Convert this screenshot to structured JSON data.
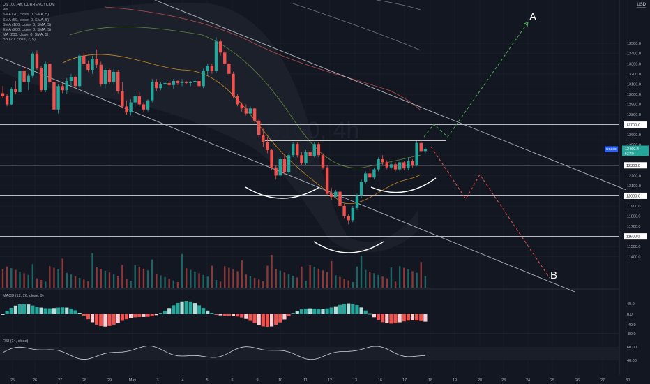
{
  "header": {
    "symbol_line": "US 100, 4h, CURRENCYCOM",
    "indicator_lines": [
      "Vol",
      "SMA (20, close, 0, SMA, 5)",
      "SMA (50, close, 0, SMA, 5)",
      "SMA (100, close, 0, SMA, 5)",
      "EMA (200, close, 0, SMA, 5)",
      "MA (200, close, 0, SMA, 5)",
      "BB (20, close, 2, 5)"
    ],
    "currency": "USD"
  },
  "watermark": "US100, 4h",
  "colors": {
    "up": "#26a69a",
    "down": "#ef5350",
    "background": "#131722",
    "grid": "#1e222d"
  },
  "chart_data": {
    "type": "candlestick",
    "price_axis_ticks": [
      13500,
      13400,
      13300,
      13200,
      13100,
      13000,
      12900,
      12800,
      12700,
      12600,
      12500,
      12400,
      12300,
      12200,
      12100,
      12000,
      11900,
      11800,
      11700,
      11600,
      11500,
      11400
    ],
    "price_axis_labels": [
      "13500.0",
      "13400.0",
      "13300.0",
      "13200.0",
      "13100.0",
      "13000.0",
      "12900.0",
      "12800.0",
      "12700.0",
      "12600.0",
      "12500.0",
      "12400.0",
      "12300.0",
      "12200.0",
      "12100.0",
      "12000.0",
      "11900.0",
      "11800.0",
      "11700.0",
      "11600.0",
      "11500.0",
      "11400.0"
    ],
    "ylim": [
      11350,
      13560
    ],
    "horizontal_levels": [
      {
        "value": 12700,
        "label": "12700.0"
      },
      {
        "value": 12300,
        "label": "12300.0"
      },
      {
        "value": 12000,
        "label": "12000.0"
      },
      {
        "value": 11600,
        "label": "11600.0"
      }
    ],
    "last_price": {
      "symbol": "US100",
      "price": "12460.4",
      "countdown": "52:40",
      "value": 12460
    },
    "x_axis_labels": [
      "25",
      "26",
      "27",
      "28",
      "29",
      "May",
      "3",
      "4",
      "5",
      "6",
      "9",
      "10",
      "11",
      "12",
      "13",
      "16",
      "17",
      "18",
      "19",
      "20",
      "23",
      "24",
      "25",
      "26",
      "27",
      "30"
    ],
    "annotations": {
      "target_up": "A",
      "target_down": "B"
    },
    "candles": [
      [
        13010,
        13080,
        12960,
        12980
      ],
      [
        12980,
        13000,
        12880,
        12900
      ],
      [
        12900,
        13070,
        12890,
        13050
      ],
      [
        13050,
        13130,
        13000,
        13020
      ],
      [
        13020,
        13250,
        13010,
        13230
      ],
      [
        13230,
        13280,
        13100,
        13120
      ],
      [
        13120,
        13200,
        13040,
        13180
      ],
      [
        13180,
        13420,
        13160,
        13400
      ],
      [
        13400,
        13430,
        13240,
        13260
      ],
      [
        13260,
        13280,
        13020,
        13040
      ],
      [
        13040,
        13320,
        13020,
        13300
      ],
      [
        13300,
        13320,
        13100,
        13120
      ],
      [
        13120,
        13140,
        12830,
        12850
      ],
      [
        12850,
        13100,
        12810,
        13080
      ],
      [
        13080,
        13120,
        13010,
        13040
      ],
      [
        13040,
        13160,
        13000,
        13130
      ],
      [
        13130,
        13200,
        13080,
        13170
      ],
      [
        13170,
        13180,
        13060,
        13080
      ],
      [
        13080,
        13400,
        13060,
        13380
      ],
      [
        13380,
        13420,
        13280,
        13300
      ],
      [
        13300,
        13330,
        13220,
        13240
      ],
      [
        13240,
        13380,
        13200,
        13350
      ],
      [
        13350,
        13440,
        13260,
        13290
      ],
      [
        13290,
        13320,
        13080,
        13100
      ],
      [
        13100,
        13260,
        13060,
        13240
      ],
      [
        13240,
        13250,
        13100,
        13120
      ],
      [
        13120,
        13250,
        13100,
        13220
      ],
      [
        13220,
        13240,
        13010,
        13030
      ],
      [
        13030,
        13120,
        12860,
        12880
      ],
      [
        12880,
        12940,
        12800,
        12820
      ],
      [
        12820,
        12950,
        12790,
        12920
      ],
      [
        12920,
        13000,
        12880,
        12980
      ],
      [
        12980,
        13020,
        12880,
        12900
      ],
      [
        12900,
        12920,
        12820,
        12850
      ],
      [
        12850,
        12950,
        12830,
        12940
      ],
      [
        12940,
        13150,
        12920,
        13120
      ],
      [
        13120,
        13150,
        13030,
        13060
      ],
      [
        13060,
        13120,
        13040,
        13100
      ],
      [
        13100,
        13140,
        13060,
        13110
      ],
      [
        13110,
        13130,
        13080,
        13090
      ],
      [
        13090,
        13150,
        13050,
        13130
      ],
      [
        13130,
        13140,
        13090,
        13110
      ],
      [
        13110,
        13150,
        13080,
        13120
      ],
      [
        13120,
        13130,
        13100,
        13110
      ],
      [
        13110,
        13130,
        13080,
        13120
      ],
      [
        13120,
        13160,
        13100,
        13130
      ],
      [
        13130,
        13150,
        13060,
        13080
      ],
      [
        13080,
        13250,
        13060,
        13230
      ],
      [
        13230,
        13300,
        13180,
        13280
      ],
      [
        13280,
        13300,
        13200,
        13230
      ],
      [
        13230,
        13560,
        13210,
        13520
      ],
      [
        13520,
        13540,
        13380,
        13410
      ],
      [
        13410,
        13440,
        13280,
        13300
      ],
      [
        13300,
        13320,
        13180,
        13200
      ],
      [
        13200,
        13220,
        12960,
        12980
      ],
      [
        12980,
        13000,
        12880,
        12900
      ],
      [
        12900,
        12920,
        12830,
        12860
      ],
      [
        12860,
        12900,
        12790,
        12810
      ],
      [
        12810,
        12880,
        12790,
        12860
      ],
      [
        12860,
        12870,
        12720,
        12740
      ],
      [
        12740,
        12760,
        12580,
        12600
      ],
      [
        12600,
        12660,
        12480,
        12530
      ],
      [
        12530,
        12580,
        12420,
        12450
      ],
      [
        12450,
        12460,
        12250,
        12280
      ],
      [
        12280,
        12300,
        12160,
        12200
      ],
      [
        12200,
        12380,
        12180,
        12360
      ],
      [
        12360,
        12400,
        12210,
        12230
      ],
      [
        12230,
        12420,
        12220,
        12400
      ],
      [
        12400,
        12530,
        12380,
        12510
      ],
      [
        12510,
        12530,
        12380,
        12400
      ],
      [
        12400,
        12430,
        12300,
        12320
      ],
      [
        12320,
        12450,
        12300,
        12430
      ],
      [
        12430,
        12450,
        12370,
        12390
      ],
      [
        12390,
        12530,
        12380,
        12510
      ],
      [
        12510,
        12530,
        12380,
        12400
      ],
      [
        12400,
        12420,
        12260,
        12280
      ],
      [
        12280,
        12300,
        12000,
        12020
      ],
      [
        12020,
        12080,
        11960,
        11990
      ],
      [
        11990,
        12060,
        11980,
        12040
      ],
      [
        12040,
        12050,
        11880,
        11900
      ],
      [
        11900,
        11920,
        11780,
        11800
      ],
      [
        11800,
        11820,
        11720,
        11760
      ],
      [
        11760,
        11900,
        11740,
        11880
      ],
      [
        11880,
        12020,
        11860,
        12000
      ],
      [
        12000,
        12160,
        11980,
        12140
      ],
      [
        12140,
        12240,
        12120,
        12220
      ],
      [
        12220,
        12270,
        12150,
        12180
      ],
      [
        12180,
        12280,
        12160,
        12260
      ],
      [
        12260,
        12380,
        12240,
        12360
      ],
      [
        12360,
        12400,
        12300,
        12330
      ],
      [
        12330,
        12350,
        12260,
        12280
      ],
      [
        12280,
        12340,
        12260,
        12310
      ],
      [
        12310,
        12330,
        12240,
        12260
      ],
      [
        12260,
        12350,
        12240,
        12330
      ],
      [
        12330,
        12340,
        12250,
        12270
      ],
      [
        12270,
        12380,
        12250,
        12340
      ],
      [
        12340,
        12360,
        12280,
        12300
      ],
      [
        12300,
        12540,
        12290,
        12520
      ],
      [
        12520,
        12540,
        12430,
        12440
      ],
      [
        12440,
        12480,
        12420,
        12460
      ]
    ],
    "support_range_note": "",
    "macd_label": "MACD (12, 26, close, 9)",
    "macd_ticks": [
      40,
      0,
      -40,
      -80
    ],
    "macd_tick_labels": [
      "40.0",
      "0.0",
      "-40.0",
      "-80.0"
    ],
    "rsi_label": "RSI (14, close)",
    "rsi_ticks": [
      60,
      40
    ],
    "rsi_tick_labels": [
      "60.00",
      "40.00"
    ]
  }
}
